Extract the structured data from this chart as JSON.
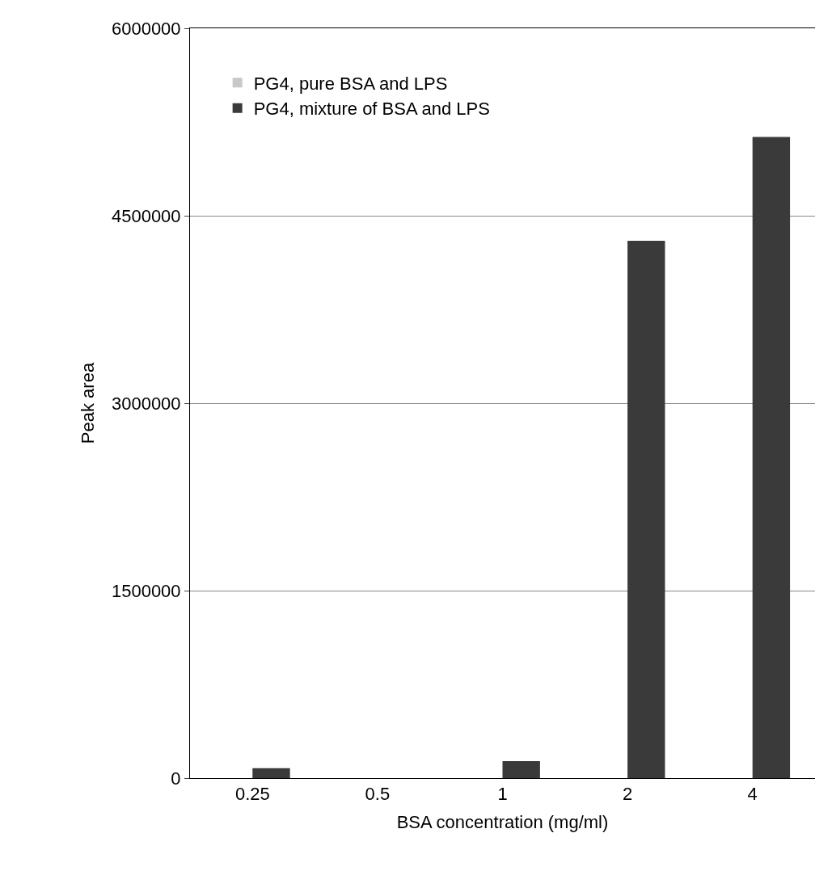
{
  "chart_data": {
    "type": "bar",
    "xlabel": "BSA concentration (mg/ml)",
    "ylabel": "Peak area",
    "categories": [
      "0.25",
      "0.5",
      "1",
      "2",
      "4"
    ],
    "series": [
      {
        "name": "PG4, pure BSA and LPS",
        "color": "#c8c8c8",
        "values": [
          null,
          null,
          null,
          null,
          null
        ]
      },
      {
        "name": "PG4, mixture of BSA and LPS",
        "color": "#3a3a3a",
        "values": [
          80000,
          0,
          135000,
          4300000,
          5130000
        ]
      }
    ],
    "ylim": [
      0,
      6000000
    ],
    "yticks": [
      0,
      1500000,
      3000000,
      4500000,
      6000000
    ],
    "grid": "y",
    "legend": "top left"
  }
}
